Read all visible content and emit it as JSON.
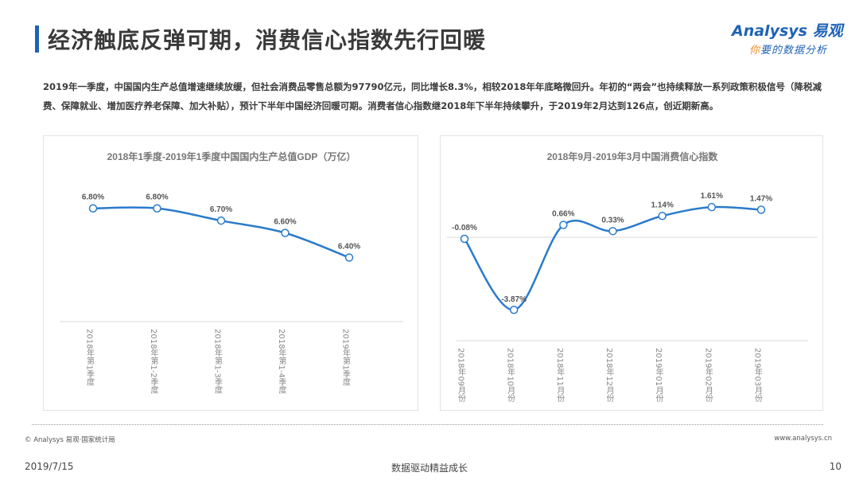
{
  "header": {
    "title": "经济触底反弹可期，消费信心指数先行回暖"
  },
  "logo": {
    "brand": "Analysys 易观",
    "slogan_accent": "你",
    "slogan_rest": "要的数据分析"
  },
  "intro": {
    "text": "2019年一季度，中国国内生产总值增速继续放缓，但社会消费品零售总额为97790亿元，同比增长8.3%，相较2018年年底略微回升。年初的“两会”也持续释放一系列政策积极信号（降税减费、保障就业、增加医疗养老保障、加大补贴），预计下半年中国经济回暖可期。消费者信心指数继2018年下半年持续攀升，于2019年2月达到126点，创近期新高。"
  },
  "colors": {
    "line": "#2b7bcb",
    "accent": "#1e63b5"
  },
  "chart_data": [
    {
      "type": "line",
      "title": "2018年1季度-2019年1季度中国国内生产总值GDP（万亿）",
      "categories": [
        "2018年第1季度",
        "2018年第1-2季度",
        "2018年第1-3季度",
        "2018年第1-4季度",
        "2019年第1季度"
      ],
      "values": [
        6.8,
        6.8,
        6.7,
        6.6,
        6.4
      ],
      "labels": [
        "6.80%",
        "6.80%",
        "6.70%",
        "6.60%",
        "6.40%"
      ],
      "ylim": [
        6.3,
        6.85
      ],
      "grid": false
    },
    {
      "type": "line",
      "title": "2018年9月-2019年3月中国消费信心指数",
      "categories": [
        "2018年09月份",
        "2018年10月份",
        "2018年11月份",
        "2018年12月份",
        "2019年01月份",
        "2019年02月份",
        "2019年03月份"
      ],
      "values": [
        -0.08,
        -3.87,
        0.66,
        0.33,
        1.14,
        1.61,
        1.47
      ],
      "labels": [
        "-0.08%",
        "-3.87%",
        "0.66%",
        "0.33%",
        "1.14%",
        "1.61%",
        "1.47%"
      ],
      "ylim": [
        -4.2,
        2.0
      ],
      "grid": false
    }
  ],
  "footer": {
    "copyright": "© Analysys 易观·国家统计局",
    "website": "www.analysys.cn",
    "date": "2019/7/15",
    "slogan": "数据驱动精益成长",
    "page": "10"
  }
}
